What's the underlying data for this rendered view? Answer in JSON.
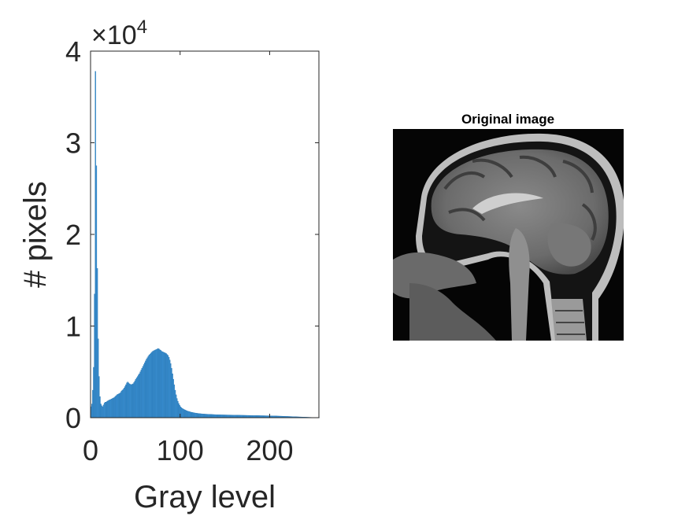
{
  "chart_data": [
    {
      "type": "bar",
      "title": "",
      "xlabel": "Gray level",
      "ylabel": "# pixels",
      "exponent_label": "×10",
      "exponent_power": "4",
      "xlim": [
        0,
        255
      ],
      "ylim": [
        0,
        40000
      ],
      "xticks": [
        0,
        100,
        200
      ],
      "yticks": [
        0,
        10000,
        20000,
        30000,
        40000
      ],
      "xtick_labels": [
        "0",
        "100",
        "200"
      ],
      "ytick_labels": [
        "0",
        "1",
        "2",
        "3",
        "4"
      ],
      "bar_color": "#3a8fd1",
      "bar_edge_color": "#1f6fad",
      "grid": false,
      "bins": {
        "x_start": 0,
        "x_step": 1,
        "values": [
          1200,
          1500,
          3000,
          5500,
          13500,
          37800,
          27500,
          16300,
          8600,
          4500,
          2300,
          1500,
          1300,
          1200,
          1400,
          1600,
          1700,
          1700,
          1800,
          1850,
          1900,
          1950,
          2000,
          2050,
          2100,
          2150,
          2200,
          2300,
          2400,
          2500,
          2550,
          2600,
          2650,
          2750,
          2900,
          3000,
          3100,
          3250,
          3400,
          3600,
          3800,
          3900,
          3800,
          3700,
          3650,
          3600,
          3650,
          3700,
          3850,
          4000,
          4200,
          4350,
          4500,
          4650,
          4800,
          5000,
          5200,
          5400,
          5600,
          5800,
          6000,
          6200,
          6400,
          6550,
          6700,
          6850,
          6950,
          7050,
          7150,
          7250,
          7300,
          7350,
          7400,
          7450,
          7500,
          7550,
          7500,
          7400,
          7350,
          7250,
          7200,
          7150,
          7100,
          7050,
          7000,
          6900,
          6800,
          6600,
          6300,
          5900,
          5400,
          4800,
          4200,
          3600,
          3000,
          2500,
          2100,
          1800,
          1550,
          1350,
          1200,
          1100,
          1000,
          950,
          900,
          850,
          800,
          760,
          720,
          690,
          660,
          630,
          600,
          580,
          560,
          540,
          520,
          505,
          490,
          475,
          460,
          450,
          440,
          430,
          420,
          410,
          400,
          395,
          390,
          385,
          380,
          375,
          370,
          365,
          360,
          355,
          350,
          345,
          340,
          335,
          330,
          325,
          320,
          318,
          316,
          314,
          312,
          310,
          308,
          306,
          304,
          302,
          300,
          298,
          296,
          294,
          292,
          290,
          288,
          286,
          284,
          282,
          280,
          278,
          276,
          274,
          272,
          270,
          268,
          266,
          264,
          262,
          260,
          258,
          256,
          254,
          252,
          250,
          248,
          246,
          244,
          242,
          240,
          238,
          236,
          234,
          232,
          230,
          228,
          226,
          224,
          222,
          220,
          218,
          216,
          214,
          212,
          210,
          208,
          206,
          204,
          202,
          200,
          197,
          194,
          191,
          188,
          185,
          182,
          179,
          176,
          173,
          170,
          166,
          162,
          158,
          154,
          150,
          146,
          142,
          138,
          134,
          130,
          126,
          122,
          118,
          114,
          110,
          106,
          102,
          98,
          94,
          90,
          86,
          82,
          78,
          74,
          70,
          66,
          62,
          58,
          54,
          50,
          46,
          42,
          38,
          34,
          30,
          26,
          22,
          18,
          14,
          10,
          6,
          2,
          1
        ]
      }
    }
  ],
  "image_panel": {
    "title": "Original image",
    "image_icon": "brain-mri-sagittal"
  },
  "colors": {
    "axis": "#262626",
    "bar": "#3a8fd1",
    "image_background": "#050505"
  }
}
